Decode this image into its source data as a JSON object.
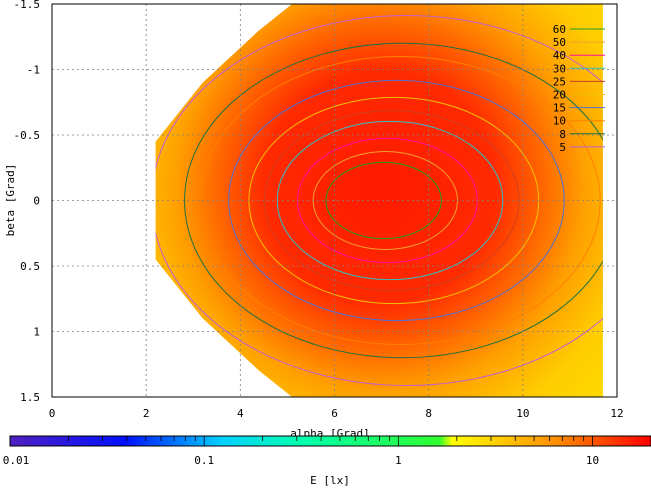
{
  "chart_data": {
    "type": "heatmap",
    "title": "",
    "xlabel": "alpha [Grad]",
    "ylabel": "beta [Grad]",
    "xlim": [
      0,
      12
    ],
    "ylim": [
      1.5,
      -1.5
    ],
    "x_ticks": [
      0,
      2,
      4,
      6,
      8,
      10,
      12
    ],
    "x_tick_labels": [
      "0",
      "2",
      "4",
      "6",
      "8",
      "10",
      "12"
    ],
    "y_ticks": [
      -1.5,
      -1,
      -0.5,
      0,
      0.5,
      1,
      1.5
    ],
    "y_tick_labels": [
      "-1.5",
      "-1",
      "-0.5",
      "0",
      "0.5",
      "1",
      "1.5"
    ],
    "grid": true,
    "legend_position": "top-right",
    "contour_levels": [
      {
        "label": "60",
        "value": 60,
        "color": "#20a020"
      },
      {
        "label": "50",
        "value": 50,
        "color": "#f0a030"
      },
      {
        "label": "40",
        "value": 40,
        "color": "#ff10a0"
      },
      {
        "label": "30",
        "value": 30,
        "color": "#30c0c0"
      },
      {
        "label": "25",
        "value": 25,
        "color": "#d04020"
      },
      {
        "label": "20",
        "value": 20,
        "color": "#f0c000"
      },
      {
        "label": "15",
        "value": 15,
        "color": "#5070d0"
      },
      {
        "label": "10",
        "value": 10,
        "color": "#ff8000"
      },
      {
        "label": "8",
        "value": 8,
        "color": "#207040"
      },
      {
        "label": "5",
        "value": 5,
        "color": "#c060d0"
      }
    ],
    "colorbar": {
      "label": "E [lx]",
      "scale": "log",
      "range": [
        0.01,
        20
      ],
      "ticks": [
        0.01,
        0.1,
        1,
        10
      ],
      "tick_labels": [
        "0.01",
        "0.1",
        "1",
        "10"
      ],
      "colors": [
        "#5020c0",
        "#0000ff",
        "#00ffff",
        "#00ff00",
        "#ffff00",
        "#ff0000"
      ]
    },
    "peak": {
      "alpha": 7.0,
      "beta": 0.0
    },
    "domain_polygon": [
      [
        2.2,
        -0.45
      ],
      [
        3.2,
        -0.9
      ],
      [
        4.4,
        -1.3
      ],
      [
        5.1,
        -1.5
      ],
      [
        11.7,
        -1.5
      ],
      [
        11.7,
        1.5
      ],
      [
        5.1,
        1.5
      ],
      [
        4.4,
        1.3
      ],
      [
        3.2,
        0.9
      ],
      [
        2.2,
        0.45
      ]
    ]
  }
}
